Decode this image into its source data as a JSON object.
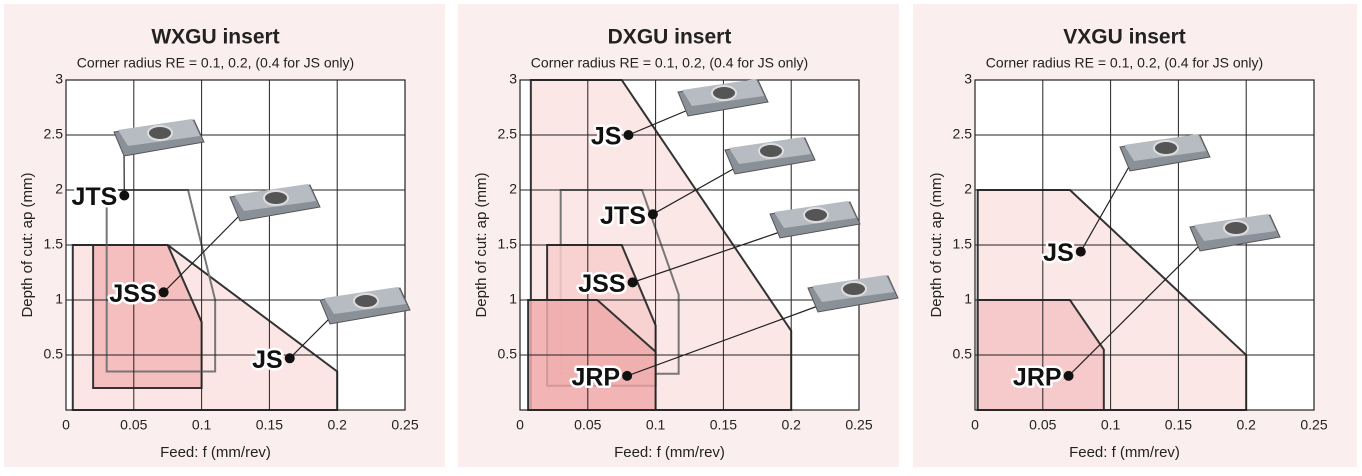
{
  "chart_data": [
    {
      "type": "region",
      "title": "WXGU insert",
      "subtitle": "Corner radius RE = 0.1, 0.2, (0.4 for JS only)",
      "xlabel": "Feed: f  (mm/rev)",
      "ylabel": "Depth of cut: ap (mm)",
      "xlim": [
        0,
        0.25
      ],
      "ylim": [
        0,
        3
      ],
      "xticks": [
        0,
        0.05,
        0.1,
        0.15,
        0.2,
        0.25
      ],
      "yticks": [
        0.5,
        1,
        1.5,
        2,
        2.5,
        3
      ],
      "grid": true,
      "regions": [
        {
          "name": "JS",
          "fill": "#fbe0e0",
          "stroke": "#333333",
          "x": [
            0.005,
            0.005,
            0.075,
            0.2,
            0.2
          ],
          "y": [
            0,
            1.5,
            1.5,
            0.35,
            0
          ],
          "point_x": 0.165,
          "point_y": 0.47
        },
        {
          "name": "JSS",
          "fill": "#f4b9b9",
          "stroke": "#333333",
          "x": [
            0.02,
            0.02,
            0.075,
            0.1,
            0.1
          ],
          "y": [
            0.2,
            1.5,
            1.5,
            0.8,
            0.2
          ],
          "point_x": 0.072,
          "point_y": 1.07
        },
        {
          "name": "JTS",
          "fill": "none",
          "stroke": "#777777",
          "x": [
            0.03,
            0.03,
            0.09,
            0.11,
            0.11
          ],
          "y": [
            0.35,
            2,
            2,
            1,
            0.35
          ],
          "point_x": 0.043,
          "point_y": 1.95
        }
      ]
    },
    {
      "type": "region",
      "title": "DXGU insert",
      "subtitle": "Corner radius RE = 0.1, 0.2, (0.4 for JS only)",
      "xlabel": "Feed: f  (mm/rev)",
      "ylabel": "Depth of cut: ap (mm)",
      "xlim": [
        0,
        0.25
      ],
      "ylim": [
        0,
        3
      ],
      "xticks": [
        0,
        0.05,
        0.1,
        0.15,
        0.2,
        0.25
      ],
      "yticks": [
        0.5,
        1,
        1.5,
        2,
        2.5,
        3
      ],
      "grid": true,
      "regions": [
        {
          "name": "JS",
          "fill": "#fbe3e3",
          "stroke": "#333333",
          "x": [
            0.008,
            0.008,
            0.075,
            0.2,
            0.2
          ],
          "y": [
            0,
            3,
            3,
            0.72,
            0
          ],
          "point_x": 0.08,
          "point_y": 2.5
        },
        {
          "name": "JTS",
          "fill": "none",
          "stroke": "#777777",
          "x": [
            0.03,
            0.03,
            0.09,
            0.117,
            0.117
          ],
          "y": [
            0.33,
            2,
            2,
            1.05,
            0.33
          ],
          "point_x": 0.098,
          "point_y": 1.78
        },
        {
          "name": "JSS",
          "fill": "#f7cccc",
          "stroke": "#333333",
          "x": [
            0.02,
            0.02,
            0.075,
            0.1,
            0.1
          ],
          "y": [
            0.22,
            1.5,
            1.5,
            0.77,
            0.22
          ],
          "point_x": 0.083,
          "point_y": 1.16
        },
        {
          "name": "JRP",
          "fill": "#f0aaaa",
          "stroke": "#333333",
          "x": [
            0.006,
            0.006,
            0.057,
            0.1,
            0.1
          ],
          "y": [
            0,
            1,
            1,
            0.53,
            0
          ],
          "point_x": 0.079,
          "point_y": 0.31
        }
      ]
    },
    {
      "type": "region",
      "title": "VXGU insert",
      "subtitle": "Corner radius RE = 0.1, 0.2, (0.4 for JS only)",
      "xlabel": "Feed: f  (mm/rev)",
      "ylabel": "Depth of cut: ap (mm)",
      "xlim": [
        0,
        0.25
      ],
      "ylim": [
        0,
        3
      ],
      "xticks": [
        0,
        0.05,
        0.1,
        0.15,
        0.2,
        0.25
      ],
      "yticks": [
        0.5,
        1,
        1.5,
        2,
        2.5,
        3
      ],
      "grid": true,
      "regions": [
        {
          "name": "JS",
          "fill": "#fbe3e3",
          "stroke": "#333333",
          "x": [
            0.002,
            0.002,
            0.07,
            0.2,
            0.2
          ],
          "y": [
            0,
            2,
            2,
            0.5,
            0
          ],
          "point_x": 0.078,
          "point_y": 1.44
        },
        {
          "name": "JRP",
          "fill": "#f5c4c4",
          "stroke": "#333333",
          "x": [
            0.002,
            0.002,
            0.07,
            0.095,
            0.095
          ],
          "y": [
            0,
            1,
            1,
            0.55,
            0
          ],
          "point_x": 0.069,
          "point_y": 0.31
        }
      ]
    }
  ]
}
